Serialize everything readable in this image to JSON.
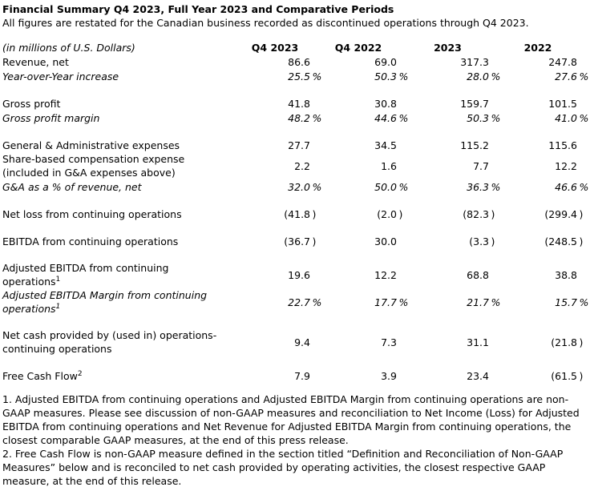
{
  "document": {
    "title": "Financial Summary Q4 2023, Full Year 2023 and Comparative Periods",
    "subtitle": "All figures are restated for the Canadian business recorded as discontinued operations through Q4 2023."
  },
  "colors": {
    "text": "#000000",
    "background": "#ffffff"
  },
  "table": {
    "unit_label": "(in millions of U.S. Dollars)",
    "columns": [
      "Q4 2023",
      "Q4 2022",
      "2023",
      "2022"
    ],
    "rows": [
      {
        "label": "Revenue, net",
        "values": [
          "86.6",
          "69.0",
          "317.3",
          "247.8"
        ]
      },
      {
        "label": "Year-over-Year increase",
        "italic": true,
        "values": [
          "25.5%",
          "50.3%",
          "28.0%",
          "27.6%"
        ]
      },
      {
        "spacer": true
      },
      {
        "label": "Gross profit",
        "values": [
          "41.8",
          "30.8",
          "159.7",
          "101.5"
        ]
      },
      {
        "label": "Gross profit margin",
        "italic": true,
        "values": [
          "48.2%",
          "44.6%",
          "50.3%",
          "41.0%"
        ]
      },
      {
        "spacer": true
      },
      {
        "label": "General & Administrative expenses",
        "values": [
          "27.7",
          "34.5",
          "115.2",
          "115.6"
        ]
      },
      {
        "label": "Share-based compensation expense\n(included in G&A expenses above)",
        "values": [
          "2.2",
          "1.6",
          "7.7",
          "12.2"
        ]
      },
      {
        "label": "G&A as a % of revenue, net",
        "italic": true,
        "values": [
          "32.0%",
          "50.0%",
          "36.3%",
          "46.6%"
        ]
      },
      {
        "spacer": true
      },
      {
        "label": "Net loss from continuing operations",
        "values": [
          "(41.8)",
          "(2.0)",
          "(82.3)",
          "(299.4)"
        ]
      },
      {
        "spacer": true
      },
      {
        "label": "EBITDA from continuing operations",
        "values": [
          "(36.7)",
          "30.0",
          "(3.3)",
          "(248.5)"
        ]
      },
      {
        "spacer": true
      },
      {
        "label": "Adjusted EBITDA from continuing\noperations",
        "sup": "1",
        "values": [
          "19.6",
          "12.2",
          "68.8",
          "38.8"
        ]
      },
      {
        "label": "Adjusted EBITDA Margin from continuing\noperations",
        "sup": "1",
        "italic": true,
        "values": [
          "22.7%",
          "17.7%",
          "21.7%",
          "15.7%"
        ]
      },
      {
        "spacer": true
      },
      {
        "label": "Net cash provided by (used in) operations-\ncontinuing operations",
        "values": [
          "9.4",
          "7.3",
          "31.1",
          "(21.8)"
        ]
      },
      {
        "spacer": true
      },
      {
        "label": "Free Cash Flow",
        "sup": "2",
        "values": [
          "7.9",
          "3.9",
          "23.4",
          "(61.5)"
        ]
      }
    ]
  },
  "footnotes": [
    "1. Adjusted EBITDA from continuing operations and Adjusted EBITDA Margin from continuing operations are non-GAAP measures. Please see discussion of non-GAAP measures and reconciliation to Net Income (Loss) for Adjusted EBITDA from continuing operations and Net Revenue for Adjusted EBITDA Margin from continuing operations, the closest comparable GAAP measures, at the end of this press release.",
    "2. Free Cash Flow is non-GAAP measure defined in the section titled “Definition and Reconciliation of Non-GAAP Measures” below and is reconciled to net cash provided by operating activities, the closest respective GAAP measure, at the end of this release."
  ]
}
